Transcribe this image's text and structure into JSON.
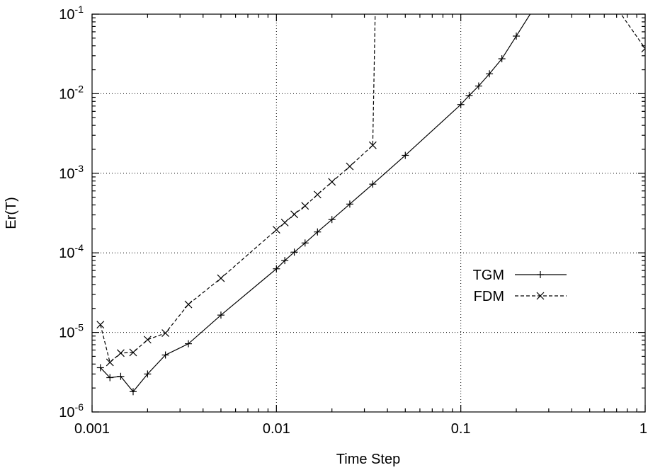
{
  "chart_data": {
    "type": "line",
    "xlabel": "Time Step",
    "ylabel": "Er(T)",
    "xscale": "log",
    "yscale": "log",
    "xlim": [
      0.001,
      1
    ],
    "ylim": [
      1e-06,
      0.1
    ],
    "grid": true,
    "legend_position": "center-right",
    "x_ticks": [
      {
        "value": 0.001,
        "label": "0.001"
      },
      {
        "value": 0.01,
        "label": "0.01"
      },
      {
        "value": 0.1,
        "label": "0.1"
      },
      {
        "value": 1,
        "label": "1"
      }
    ],
    "y_ticks": [
      {
        "value": 1e-06,
        "base": "10",
        "exp": "-6"
      },
      {
        "value": 1e-05,
        "base": "10",
        "exp": "-5"
      },
      {
        "value": 0.0001,
        "base": "10",
        "exp": "-4"
      },
      {
        "value": 0.001,
        "base": "10",
        "exp": "-3"
      },
      {
        "value": 0.01,
        "base": "10",
        "exp": "-2"
      },
      {
        "value": 0.1,
        "base": "10",
        "exp": "-1"
      }
    ],
    "series": [
      {
        "name": "TGM",
        "line_style": "solid",
        "marker": "plus",
        "x": [
          0.00111,
          0.00125,
          0.00143,
          0.00167,
          0.002,
          0.0025,
          0.00333,
          0.005,
          0.01,
          0.0111,
          0.0125,
          0.0143,
          0.0167,
          0.02,
          0.025,
          0.0333,
          0.05,
          0.1,
          0.111,
          0.125,
          0.143,
          0.167,
          0.2,
          0.25,
          0.333
        ],
        "y": [
          3.6e-06,
          2.7e-06,
          2.8e-06,
          1.8e-06,
          3e-06,
          5.2e-06,
          7.2e-06,
          1.65e-05,
          6.3e-05,
          8e-05,
          0.000102,
          0.000133,
          0.000183,
          0.000262,
          0.00041,
          0.00073,
          0.00168,
          0.0073,
          0.0095,
          0.0125,
          0.0178,
          0.0275,
          0.053,
          0.12,
          0.5
        ]
      },
      {
        "name": "FDM",
        "line_style": "dashed",
        "marker": "cross",
        "x": [
          0.00111,
          0.00125,
          0.00143,
          0.00167,
          0.002,
          0.0025,
          0.00333,
          0.005,
          0.01,
          0.0111,
          0.0125,
          0.0143,
          0.0167,
          0.02,
          0.025,
          0.0333,
          0.0345,
          0.6,
          1
        ],
        "y": [
          1.25e-05,
          4.2e-06,
          5.5e-06,
          5.6e-06,
          8.1e-06,
          9.8e-06,
          2.25e-05,
          4.8e-05,
          0.000195,
          0.00024,
          0.000305,
          0.00039,
          0.00054,
          0.00078,
          0.00122,
          0.00225,
          0.2,
          0.2,
          0.037
        ]
      }
    ]
  }
}
